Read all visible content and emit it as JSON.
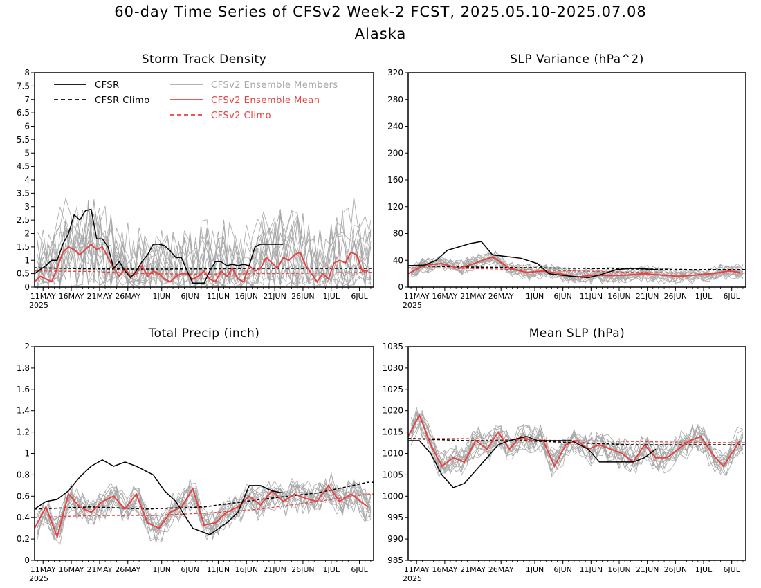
{
  "title": "60-day Time Series of CFSv2 Week-2 FCST, 2025.05.10-2025.07.08",
  "subtitle": "Alaska",
  "colors": {
    "cfsr": "#000000",
    "members": "#a8a8a8",
    "mean": "#e8413f",
    "climo": "#e8413f"
  },
  "legend": {
    "cfsr": "CFSR",
    "cfsr_climo": "CFSR Climo",
    "members": "CFSv2 Ensemble Members",
    "mean": "CFSv2 Ensemble Mean",
    "cfsv2_climo": "CFSv2 Climo"
  },
  "x_axis": {
    "date_range": [
      "2025-05-10",
      "2025-07-08"
    ],
    "tick_dates": [
      "2025-05-11",
      "2025-05-16",
      "2025-05-21",
      "2025-05-26",
      "2025-06-01",
      "2025-06-06",
      "2025-06-11",
      "2025-06-16",
      "2025-06-21",
      "2025-06-26",
      "2025-07-01",
      "2025-07-06"
    ],
    "tick_labels": [
      "11MAY",
      "16MAY",
      "21MAY",
      "26MAY",
      "1JUN",
      "6JUN",
      "11JUN",
      "16JUN",
      "21JUN",
      "26JUN",
      "1JUL",
      "6JUL"
    ],
    "year_label": "2025"
  },
  "chart_data": [
    {
      "type": "line",
      "title": "Storm Track Density",
      "ylim": [
        0,
        8
      ],
      "yticks": [
        "0",
        "0.5",
        "1",
        "1.5",
        "2",
        "2.5",
        "3",
        "3.5",
        "4",
        "4.5",
        "5",
        "5.5",
        "6",
        "6.5",
        "7",
        "7.5",
        "8"
      ],
      "ytick_values": [
        0,
        0.5,
        1,
        1.5,
        2,
        2.5,
        3,
        3.5,
        4,
        4.5,
        5,
        5.5,
        6,
        6.5,
        7,
        7.5,
        8
      ],
      "legend": true,
      "cfsr_dates": [
        "2025-05-10",
        "2025-05-12",
        "2025-05-13",
        "2025-05-14",
        "2025-05-15",
        "2025-05-16",
        "2025-05-17",
        "2025-05-18",
        "2025-05-19",
        "2025-05-20",
        "2025-05-21",
        "2025-05-22",
        "2025-05-23",
        "2025-05-24",
        "2025-05-25",
        "2025-05-26",
        "2025-05-27",
        "2025-05-28",
        "2025-05-29",
        "2025-05-30",
        "2025-05-31",
        "2025-06-01",
        "2025-06-02",
        "2025-06-03",
        "2025-06-04",
        "2025-06-05",
        "2025-06-06",
        "2025-06-07",
        "2025-06-08",
        "2025-06-09",
        "2025-06-10",
        "2025-06-11",
        "2025-06-12",
        "2025-06-13",
        "2025-06-14",
        "2025-06-15",
        "2025-06-16",
        "2025-06-17",
        "2025-06-18",
        "2025-06-19",
        "2025-06-20",
        "2025-06-21",
        "2025-06-22",
        "2025-06-23"
      ],
      "cfsr": [
        0.5,
        0.8,
        1.0,
        1.0,
        1.6,
        2.0,
        2.7,
        2.5,
        2.85,
        2.9,
        1.8,
        1.8,
        1.5,
        0.7,
        0.95,
        0.6,
        0.35,
        0.6,
        0.95,
        1.2,
        1.6,
        1.6,
        1.55,
        1.35,
        1.1,
        1.1,
        0.6,
        0.15,
        0.15,
        0.15,
        0.6,
        0.95,
        0.95,
        0.8,
        0.85,
        0.8,
        0.85,
        0.8,
        1.5,
        1.6,
        1.6,
        1.6,
        1.6,
        1.6
      ],
      "mean_dates": [
        "2025-05-10",
        "2025-05-11",
        "2025-05-12",
        "2025-05-13",
        "2025-05-14",
        "2025-05-15",
        "2025-05-16",
        "2025-05-17",
        "2025-05-18",
        "2025-05-19",
        "2025-05-20",
        "2025-05-21",
        "2025-05-22",
        "2025-05-23",
        "2025-05-24",
        "2025-05-25",
        "2025-05-26",
        "2025-05-27",
        "2025-05-28",
        "2025-05-29",
        "2025-05-30",
        "2025-05-31",
        "2025-06-01",
        "2025-06-02",
        "2025-06-03",
        "2025-06-04",
        "2025-06-05",
        "2025-06-06",
        "2025-06-07",
        "2025-06-08",
        "2025-06-09",
        "2025-06-10",
        "2025-06-11",
        "2025-06-12",
        "2025-06-13",
        "2025-06-14",
        "2025-06-15",
        "2025-06-16",
        "2025-06-17",
        "2025-06-18",
        "2025-06-19",
        "2025-06-20",
        "2025-06-21",
        "2025-06-22",
        "2025-06-23",
        "2025-06-24",
        "2025-06-25",
        "2025-06-26",
        "2025-06-27",
        "2025-06-28",
        "2025-06-29",
        "2025-06-30",
        "2025-07-01",
        "2025-07-02",
        "2025-07-03",
        "2025-07-04",
        "2025-07-05",
        "2025-07-06",
        "2025-07-07",
        "2025-07-08"
      ],
      "mean": [
        0.2,
        0.4,
        0.3,
        0.2,
        0.7,
        1.3,
        1.5,
        1.4,
        1.2,
        1.4,
        1.6,
        1.4,
        1.5,
        1.1,
        0.7,
        0.4,
        0.7,
        0.4,
        0.5,
        0.8,
        0.4,
        0.6,
        0.5,
        0.3,
        0.2,
        0.4,
        0.5,
        0.5,
        0.3,
        0.4,
        0.6,
        0.3,
        0.2,
        0.6,
        0.4,
        0.7,
        0.3,
        0.2,
        0.8,
        0.6,
        0.7,
        1.1,
        0.9,
        0.7,
        1.1,
        1.0,
        1.2,
        1.3,
        0.8,
        0.5,
        0.2,
        0.5,
        0.3,
        0.9,
        1.0,
        0.9,
        1.3,
        1.2,
        0.6,
        0.6
      ],
      "cfsr_climo": {
        "dates": [
          "2025-05-10",
          "2025-05-20",
          "2025-05-30",
          "2025-06-09",
          "2025-06-19",
          "2025-06-29",
          "2025-07-08"
        ],
        "values": [
          0.72,
          0.68,
          0.67,
          0.68,
          0.7,
          0.7,
          0.7
        ]
      },
      "cfsv2_climo": {
        "dates": [
          "2025-05-10",
          "2025-05-20",
          "2025-05-30",
          "2025-06-09",
          "2025-06-19",
          "2025-06-29",
          "2025-07-08"
        ],
        "values": [
          0.6,
          0.58,
          0.5,
          0.48,
          0.5,
          0.52,
          0.55
        ]
      },
      "members_spread": 1.7,
      "members_noise": 1.0
    },
    {
      "type": "line",
      "title": "SLP Variance (hPa^2)",
      "ylim": [
        0,
        320
      ],
      "yticks": [
        "0",
        "40",
        "80",
        "120",
        "160",
        "200",
        "240",
        "280",
        "320"
      ],
      "ytick_values": [
        0,
        40,
        80,
        120,
        160,
        200,
        240,
        280,
        320
      ],
      "legend": false,
      "cfsr_dates": [
        "2025-05-10",
        "2025-05-13",
        "2025-05-15",
        "2025-05-17",
        "2025-05-19",
        "2025-05-21",
        "2025-05-23",
        "2025-05-25",
        "2025-05-27",
        "2025-05-30",
        "2025-06-02",
        "2025-06-04",
        "2025-06-06",
        "2025-06-08",
        "2025-06-11",
        "2025-06-13",
        "2025-06-16",
        "2025-06-19",
        "2025-06-21",
        "2025-06-23"
      ],
      "cfsr": [
        32,
        33,
        40,
        55,
        60,
        65,
        68,
        48,
        46,
        43,
        35,
        20,
        18,
        16,
        14,
        18,
        26,
        28,
        27,
        26
      ],
      "mean_dates": [
        "2025-05-10",
        "2025-05-13",
        "2025-05-16",
        "2025-05-19",
        "2025-05-22",
        "2025-05-25",
        "2025-05-28",
        "2025-05-31",
        "2025-06-03",
        "2025-06-06",
        "2025-06-09",
        "2025-06-12",
        "2025-06-15",
        "2025-06-18",
        "2025-06-21",
        "2025-06-24",
        "2025-06-27",
        "2025-06-30",
        "2025-07-03",
        "2025-07-06",
        "2025-07-08"
      ],
      "mean": [
        20,
        33,
        35,
        28,
        36,
        45,
        28,
        22,
        24,
        20,
        15,
        18,
        17,
        18,
        20,
        18,
        16,
        18,
        20,
        24,
        22
      ],
      "cfsr_climo": {
        "dates": [
          "2025-05-10",
          "2025-05-20",
          "2025-05-30",
          "2025-06-09",
          "2025-06-19",
          "2025-06-29",
          "2025-07-08"
        ],
        "values": [
          32,
          30,
          29,
          28,
          27,
          26,
          26
        ]
      },
      "cfsv2_climo": {
        "dates": [
          "2025-05-10",
          "2025-05-20",
          "2025-05-30",
          "2025-06-09",
          "2025-06-19",
          "2025-06-29",
          "2025-07-08"
        ],
        "values": [
          29,
          28,
          26,
          24,
          22,
          21,
          21
        ]
      },
      "members_spread": 10,
      "members_noise": 8
    },
    {
      "type": "line",
      "title": "Total Precip (inch)",
      "ylim": [
        0,
        2
      ],
      "yticks": [
        "0",
        "0.2",
        "0.4",
        "0.6",
        "0.8",
        "1",
        "1.2",
        "1.4",
        "1.6",
        "1.8",
        "2"
      ],
      "ytick_values": [
        0,
        0.2,
        0.4,
        0.6,
        0.8,
        1.0,
        1.2,
        1.4,
        1.6,
        1.8,
        2.0
      ],
      "legend": false,
      "cfsr_dates": [
        "2025-05-10",
        "2025-05-12",
        "2025-05-14",
        "2025-05-16",
        "2025-05-18",
        "2025-05-20",
        "2025-05-22",
        "2025-05-24",
        "2025-05-26",
        "2025-05-28",
        "2025-05-31",
        "2025-06-02",
        "2025-06-04",
        "2025-06-07",
        "2025-06-10",
        "2025-06-13",
        "2025-06-15",
        "2025-06-17",
        "2025-06-19",
        "2025-06-21",
        "2025-06-23"
      ],
      "cfsr": [
        0.48,
        0.55,
        0.57,
        0.65,
        0.78,
        0.88,
        0.94,
        0.88,
        0.92,
        0.88,
        0.8,
        0.65,
        0.55,
        0.3,
        0.24,
        0.35,
        0.45,
        0.7,
        0.7,
        0.65,
        0.63
      ],
      "mean_dates": [
        "2025-05-10",
        "2025-05-12",
        "2025-05-14",
        "2025-05-16",
        "2025-05-18",
        "2025-05-20",
        "2025-05-22",
        "2025-05-24",
        "2025-05-26",
        "2025-05-28",
        "2025-05-30",
        "2025-06-01",
        "2025-06-03",
        "2025-06-05",
        "2025-06-07",
        "2025-06-09",
        "2025-06-11",
        "2025-06-13",
        "2025-06-15",
        "2025-06-17",
        "2025-06-19",
        "2025-06-21",
        "2025-06-23",
        "2025-06-25",
        "2025-06-27",
        "2025-06-29",
        "2025-07-01",
        "2025-07-03",
        "2025-07-05",
        "2025-07-08"
      ],
      "mean": [
        0.3,
        0.5,
        0.22,
        0.62,
        0.5,
        0.45,
        0.55,
        0.6,
        0.48,
        0.62,
        0.35,
        0.3,
        0.45,
        0.5,
        0.67,
        0.33,
        0.35,
        0.45,
        0.5,
        0.6,
        0.52,
        0.65,
        0.55,
        0.62,
        0.58,
        0.55,
        0.7,
        0.55,
        0.62,
        0.5
      ],
      "cfsr_climo": {
        "dates": [
          "2025-05-10",
          "2025-05-20",
          "2025-05-30",
          "2025-06-09",
          "2025-06-19",
          "2025-06-29",
          "2025-07-08"
        ],
        "values": [
          0.48,
          0.5,
          0.48,
          0.5,
          0.57,
          0.63,
          0.73
        ]
      },
      "cfsv2_climo": {
        "dates": [
          "2025-05-10",
          "2025-05-20",
          "2025-05-30",
          "2025-06-09",
          "2025-06-19",
          "2025-06-29",
          "2025-07-08"
        ],
        "values": [
          0.4,
          0.42,
          0.42,
          0.44,
          0.48,
          0.55,
          0.62
        ]
      },
      "members_spread": 0.12,
      "members_noise": 0.12
    },
    {
      "type": "line",
      "title": "Mean SLP (hPa)",
      "ylim": [
        985,
        1035
      ],
      "yticks": [
        "985",
        "990",
        "995",
        "1000",
        "1005",
        "1010",
        "1015",
        "1020",
        "1025",
        "1030",
        "1035"
      ],
      "ytick_values": [
        985,
        990,
        995,
        1000,
        1005,
        1010,
        1015,
        1020,
        1025,
        1030,
        1035
      ],
      "legend": false,
      "cfsr_dates": [
        "2025-05-10",
        "2025-05-12",
        "2025-05-14",
        "2025-05-16",
        "2025-05-18",
        "2025-05-20",
        "2025-05-22",
        "2025-05-24",
        "2025-05-26",
        "2025-05-28",
        "2025-05-31",
        "2025-06-02",
        "2025-06-05",
        "2025-06-08",
        "2025-06-11",
        "2025-06-13",
        "2025-06-16",
        "2025-06-19",
        "2025-06-21",
        "2025-06-23"
      ],
      "cfsr": [
        1013,
        1013,
        1010,
        1005,
        1002,
        1003,
        1006,
        1009,
        1012,
        1013,
        1014,
        1013,
        1013,
        1013,
        1011,
        1008,
        1008,
        1008,
        1009,
        1011
      ],
      "mean_dates": [
        "2025-05-10",
        "2025-05-12",
        "2025-05-14",
        "2025-05-16",
        "2025-05-18",
        "2025-05-20",
        "2025-05-22",
        "2025-05-24",
        "2025-05-26",
        "2025-05-28",
        "2025-05-30",
        "2025-06-01",
        "2025-06-03",
        "2025-06-05",
        "2025-06-07",
        "2025-06-09",
        "2025-06-11",
        "2025-06-13",
        "2025-06-15",
        "2025-06-17",
        "2025-06-19",
        "2025-06-21",
        "2025-06-23",
        "2025-06-25",
        "2025-06-27",
        "2025-06-29",
        "2025-07-01",
        "2025-07-03",
        "2025-07-05",
        "2025-07-08"
      ],
      "mean": [
        1014,
        1019,
        1012,
        1007,
        1009,
        1008,
        1013,
        1011,
        1015,
        1011,
        1014,
        1013,
        1013,
        1007,
        1012,
        1013,
        1011,
        1012,
        1011,
        1010,
        1008,
        1012,
        1009,
        1009,
        1011,
        1013,
        1014,
        1010,
        1007,
        1013
      ],
      "cfsr_climo": {
        "dates": [
          "2025-05-10",
          "2025-05-20",
          "2025-05-30",
          "2025-06-09",
          "2025-06-19",
          "2025-06-29",
          "2025-07-08"
        ],
        "values": [
          1013.5,
          1013,
          1013,
          1012.5,
          1012,
          1012,
          1012
        ]
      },
      "cfsv2_climo": {
        "dates": [
          "2025-05-10",
          "2025-05-20",
          "2025-05-30",
          "2025-06-09",
          "2025-06-19",
          "2025-06-29",
          "2025-07-08"
        ],
        "values": [
          1013.5,
          1013.5,
          1013.2,
          1013,
          1012.8,
          1012.6,
          1012.5
        ]
      },
      "members_spread": 3,
      "members_noise": 2.5
    }
  ]
}
